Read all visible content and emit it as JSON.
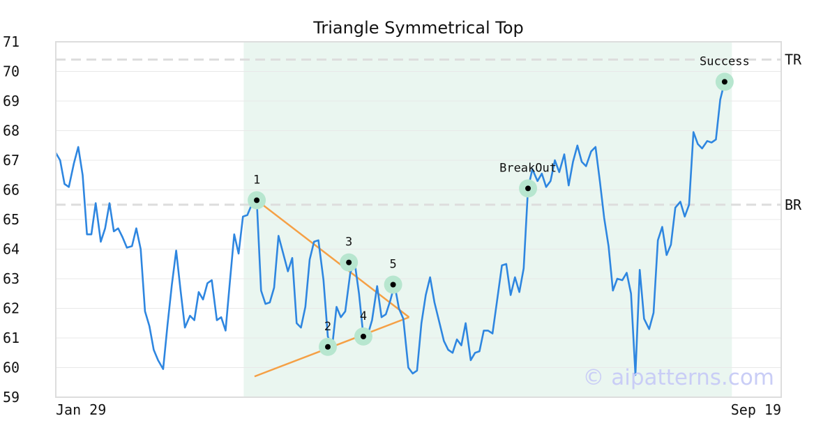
{
  "chart_data": {
    "type": "line",
    "title": "Triangle Symmetrical Top",
    "xlabel": "",
    "ylabel": "",
    "ylim": [
      59,
      71
    ],
    "yticks": [
      59,
      60,
      61,
      62,
      63,
      64,
      65,
      66,
      67,
      68,
      69,
      70,
      71
    ],
    "xticks": [
      {
        "label": "Jan 29",
        "t": 0
      },
      {
        "label": "Sep 19",
        "t": 1
      }
    ],
    "grid": "horizontal",
    "shaded_region": {
      "t_start": 0.259,
      "t_end": 0.932,
      "color": "#eaf6f0"
    },
    "horizontal_lines": [
      {
        "label": "TR",
        "y": 70.4
      },
      {
        "label": "BR",
        "y": 65.5
      }
    ],
    "series": [
      {
        "color": "#2e86e0",
        "points": [
          [
            0.0,
            67.25
          ],
          [
            0.006,
            67.0
          ],
          [
            0.012,
            66.2
          ],
          [
            0.018,
            66.1
          ],
          [
            0.025,
            66.9
          ],
          [
            0.031,
            67.45
          ],
          [
            0.037,
            66.5
          ],
          [
            0.043,
            64.5
          ],
          [
            0.049,
            64.5
          ],
          [
            0.055,
            65.55
          ],
          [
            0.062,
            64.25
          ],
          [
            0.068,
            64.7
          ],
          [
            0.074,
            65.55
          ],
          [
            0.08,
            64.6
          ],
          [
            0.086,
            64.7
          ],
          [
            0.092,
            64.4
          ],
          [
            0.098,
            64.05
          ],
          [
            0.105,
            64.1
          ],
          [
            0.111,
            64.7
          ],
          [
            0.117,
            64.0
          ],
          [
            0.123,
            61.9
          ],
          [
            0.129,
            61.4
          ],
          [
            0.135,
            60.6
          ],
          [
            0.141,
            60.25
          ],
          [
            0.148,
            59.95
          ],
          [
            0.154,
            61.45
          ],
          [
            0.16,
            62.8
          ],
          [
            0.166,
            63.95
          ],
          [
            0.172,
            62.6
          ],
          [
            0.178,
            61.35
          ],
          [
            0.185,
            61.75
          ],
          [
            0.191,
            61.6
          ],
          [
            0.197,
            62.55
          ],
          [
            0.203,
            62.3
          ],
          [
            0.209,
            62.85
          ],
          [
            0.215,
            62.95
          ],
          [
            0.222,
            61.6
          ],
          [
            0.228,
            61.7
          ],
          [
            0.234,
            61.25
          ],
          [
            0.24,
            62.9
          ],
          [
            0.246,
            64.5
          ],
          [
            0.252,
            63.85
          ],
          [
            0.258,
            65.1
          ],
          [
            0.264,
            65.15
          ],
          [
            0.27,
            65.5
          ],
          [
            0.277,
            65.65
          ],
          [
            0.283,
            62.6
          ],
          [
            0.289,
            62.15
          ],
          [
            0.295,
            62.2
          ],
          [
            0.301,
            62.7
          ],
          [
            0.307,
            64.45
          ],
          [
            0.313,
            63.9
          ],
          [
            0.32,
            63.25
          ],
          [
            0.326,
            63.7
          ],
          [
            0.332,
            61.5
          ],
          [
            0.338,
            61.35
          ],
          [
            0.344,
            62.05
          ],
          [
            0.35,
            63.65
          ],
          [
            0.356,
            64.25
          ],
          [
            0.362,
            64.3
          ],
          [
            0.369,
            62.95
          ],
          [
            0.375,
            61.05
          ],
          [
            0.381,
            60.7
          ],
          [
            0.387,
            62.05
          ],
          [
            0.393,
            61.7
          ],
          [
            0.399,
            61.9
          ],
          [
            0.406,
            63.2
          ],
          [
            0.412,
            63.55
          ],
          [
            0.418,
            62.5
          ],
          [
            0.424,
            61.05
          ],
          [
            0.43,
            61.1
          ],
          [
            0.436,
            61.6
          ],
          [
            0.443,
            62.75
          ],
          [
            0.449,
            61.7
          ],
          [
            0.455,
            61.8
          ],
          [
            0.461,
            62.25
          ],
          [
            0.467,
            62.8
          ],
          [
            0.473,
            62.0
          ],
          [
            0.479,
            61.65
          ],
          [
            0.486,
            60.0
          ],
          [
            0.492,
            59.8
          ],
          [
            0.498,
            59.9
          ],
          [
            0.504,
            61.5
          ],
          [
            0.51,
            62.45
          ],
          [
            0.516,
            63.05
          ],
          [
            0.522,
            62.2
          ],
          [
            0.529,
            61.5
          ],
          [
            0.535,
            60.9
          ],
          [
            0.541,
            60.6
          ],
          [
            0.547,
            60.5
          ],
          [
            0.553,
            60.95
          ],
          [
            0.559,
            60.75
          ],
          [
            0.565,
            61.5
          ],
          [
            0.572,
            60.25
          ],
          [
            0.578,
            60.5
          ],
          [
            0.584,
            60.55
          ],
          [
            0.59,
            61.25
          ],
          [
            0.596,
            61.25
          ],
          [
            0.602,
            61.15
          ],
          [
            0.608,
            62.2
          ],
          [
            0.615,
            63.45
          ],
          [
            0.621,
            63.5
          ],
          [
            0.627,
            62.45
          ],
          [
            0.633,
            63.05
          ],
          [
            0.639,
            62.55
          ],
          [
            0.645,
            63.35
          ],
          [
            0.651,
            66.05
          ],
          [
            0.657,
            66.7
          ],
          [
            0.664,
            66.3
          ],
          [
            0.67,
            66.55
          ],
          [
            0.676,
            66.1
          ],
          [
            0.682,
            66.3
          ],
          [
            0.688,
            67.0
          ],
          [
            0.694,
            66.6
          ],
          [
            0.701,
            67.2
          ],
          [
            0.707,
            66.15
          ],
          [
            0.713,
            66.95
          ],
          [
            0.719,
            67.5
          ],
          [
            0.725,
            66.95
          ],
          [
            0.731,
            66.8
          ],
          [
            0.738,
            67.3
          ],
          [
            0.744,
            67.45
          ],
          [
            0.75,
            66.3
          ],
          [
            0.756,
            65.05
          ],
          [
            0.762,
            64.1
          ],
          [
            0.768,
            62.6
          ],
          [
            0.774,
            63.0
          ],
          [
            0.781,
            62.95
          ],
          [
            0.787,
            63.2
          ],
          [
            0.793,
            62.5
          ],
          [
            0.799,
            59.75
          ],
          [
            0.805,
            63.3
          ],
          [
            0.811,
            61.65
          ],
          [
            0.818,
            61.3
          ],
          [
            0.824,
            61.85
          ],
          [
            0.83,
            64.3
          ],
          [
            0.836,
            64.75
          ],
          [
            0.842,
            63.8
          ],
          [
            0.848,
            64.15
          ],
          [
            0.854,
            65.4
          ],
          [
            0.861,
            65.6
          ],
          [
            0.867,
            65.1
          ],
          [
            0.873,
            65.5
          ],
          [
            0.879,
            67.95
          ],
          [
            0.885,
            67.55
          ],
          [
            0.891,
            67.4
          ],
          [
            0.898,
            67.65
          ],
          [
            0.904,
            67.6
          ],
          [
            0.91,
            67.7
          ],
          [
            0.916,
            69.05
          ],
          [
            0.922,
            69.65
          ],
          [
            0.928,
            69.65
          ],
          [
            0.934,
            69.65
          ]
        ]
      }
    ],
    "triangle_lines": [
      {
        "color": "#f5a045",
        "from": [
          0.277,
          65.65
        ],
        "to": [
          0.487,
          61.7
        ]
      },
      {
        "color": "#f5a045",
        "from": [
          0.274,
          59.7
        ],
        "to": [
          0.487,
          61.7
        ]
      }
    ],
    "markers": [
      {
        "label": "1",
        "t": 0.277,
        "y": 65.65,
        "label_pos": "above"
      },
      {
        "label": "2",
        "t": 0.375,
        "y": 60.7,
        "label_pos": "above"
      },
      {
        "label": "3",
        "t": 0.404,
        "y": 63.55,
        "label_pos": "above"
      },
      {
        "label": "4",
        "t": 0.424,
        "y": 61.05,
        "label_pos": "above"
      },
      {
        "label": "5",
        "t": 0.465,
        "y": 62.8,
        "label_pos": "above"
      },
      {
        "label": "BreakOut",
        "t": 0.651,
        "y": 66.05,
        "label_pos": "above"
      },
      {
        "label": "Success",
        "t": 0.922,
        "y": 69.65,
        "label_pos": "above"
      }
    ],
    "watermark": "© aipatterns.com",
    "colors": {
      "line": "#2e86e0",
      "triangle": "#f5a045",
      "marker_halo": "#b7e6cf",
      "marker_dot": "#000000",
      "reference_line": "#dddddd",
      "grid": "#e8e8e8",
      "frame": "#dddddd"
    }
  }
}
